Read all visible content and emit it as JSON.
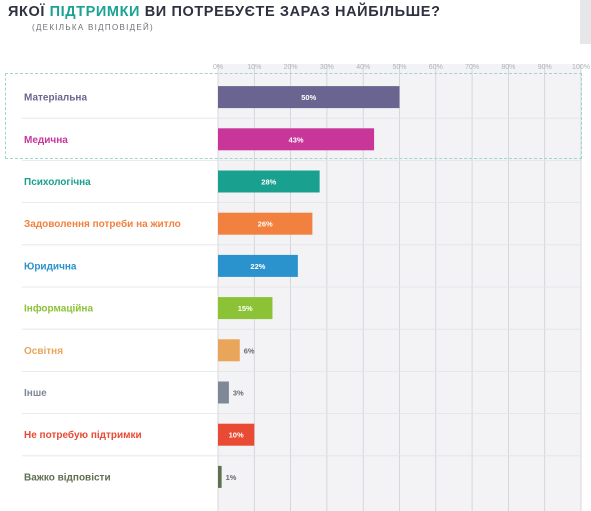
{
  "header": {
    "title_pre": "ЯКОЇ",
    "title_highlight": "ПІДТРИМКИ",
    "title_post": "ВИ ПОТРЕБУЄТЕ ЗАРАЗ НАЙБІЛЬШЕ?",
    "subtitle": "(ДЕКІЛЬКА ВІДПОВІДЕЙ)"
  },
  "chart_data": {
    "type": "bar",
    "orientation": "horizontal",
    "title": "ЯКОЇ ПІДТРИМКИ ВИ ПОТРЕБУЄТЕ ЗАРАЗ НАЙБІЛЬШЕ?",
    "xlim": [
      0,
      100
    ],
    "ticks": [
      0,
      10,
      20,
      30,
      40,
      50,
      60,
      70,
      80,
      90,
      100
    ],
    "tick_labels": [
      "0%",
      "10%",
      "20%",
      "30%",
      "40%",
      "50%",
      "60%",
      "70%",
      "80%",
      "90%",
      "100%"
    ],
    "grid": true,
    "categories": [
      "Матеріальна",
      "Медична",
      "Психологічна",
      "Задоволення потреби на житло",
      "Юридична",
      "Інформаційна",
      "Освітня",
      "Інше",
      "Не потребую підтримки",
      "Важко відповісти"
    ],
    "values": [
      50,
      43,
      28,
      26,
      22,
      15,
      6,
      3,
      10,
      1
    ],
    "value_labels": [
      "50%",
      "43%",
      "28%",
      "26%",
      "22%",
      "15%",
      "6%",
      "3%",
      "10%",
      "1%"
    ],
    "colors": [
      "#6a6590",
      "#c8369a",
      "#19a08e",
      "#f2813f",
      "#2a92cc",
      "#8cc236",
      "#e9a55a",
      "#7e8896",
      "#e94a34",
      "#5f7050"
    ],
    "highlighted_categories": [
      "Матеріальна",
      "Медична"
    ]
  }
}
